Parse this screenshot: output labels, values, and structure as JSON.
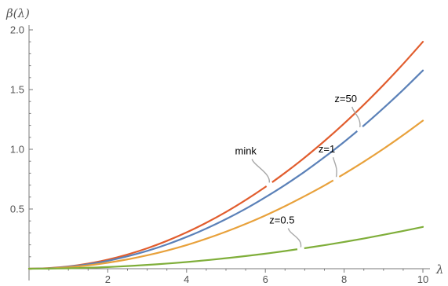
{
  "chart_data": {
    "type": "line",
    "xlabel": "λ",
    "ylabel": "β(λ)",
    "xlim": [
      0,
      10
    ],
    "ylim": [
      -0.1,
      2.0
    ],
    "xticks": [
      2,
      4,
      6,
      8,
      10
    ],
    "yticks": [
      0.5,
      1.0,
      1.5,
      2.0
    ],
    "ytick_labels": [
      "0.5",
      "1.0",
      "1.5",
      "2.0"
    ],
    "grid": false,
    "x": [
      0,
      0.5,
      1,
      1.5,
      2,
      2.5,
      3,
      3.5,
      4,
      4.5,
      5,
      5.5,
      6,
      6.5,
      7,
      7.5,
      8,
      8.5,
      9,
      9.5,
      10
    ],
    "series": [
      {
        "name": "mink",
        "color": "#e15d2e",
        "values": [
          0,
          0.005,
          0.019,
          0.043,
          0.076,
          0.119,
          0.171,
          0.233,
          0.304,
          0.385,
          0.475,
          0.575,
          0.684,
          0.803,
          0.931,
          1.069,
          1.216,
          1.373,
          1.539,
          1.715,
          1.9
        ]
      },
      {
        "name": "z=50",
        "color": "#5b81b8",
        "values": [
          0,
          0.004,
          0.017,
          0.037,
          0.066,
          0.104,
          0.149,
          0.203,
          0.266,
          0.336,
          0.415,
          0.502,
          0.598,
          0.701,
          0.813,
          0.934,
          1.062,
          1.199,
          1.345,
          1.498,
          1.66
        ]
      },
      {
        "name": "z=1",
        "color": "#e8a13b",
        "values": [
          0,
          0.003,
          0.012,
          0.028,
          0.05,
          0.078,
          0.112,
          0.152,
          0.198,
          0.251,
          0.31,
          0.375,
          0.446,
          0.524,
          0.608,
          0.697,
          0.794,
          0.896,
          1.004,
          1.119,
          1.24
        ]
      },
      {
        "name": "z=0.5",
        "color": "#7fae3a",
        "values": [
          0,
          0.001,
          0.0035,
          0.008,
          0.014,
          0.022,
          0.032,
          0.043,
          0.056,
          0.071,
          0.088,
          0.106,
          0.126,
          0.148,
          0.172,
          0.197,
          0.224,
          0.253,
          0.284,
          0.316,
          0.35
        ]
      }
    ],
    "annotations": [
      {
        "text": "mink",
        "series": "mink",
        "x": 6.1
      },
      {
        "text": "z=50",
        "series": "z=50",
        "x": 8.4
      },
      {
        "text": "z=1",
        "series": "z=1",
        "x": 7.8
      },
      {
        "text": "z=0.5",
        "series": "z=0.5",
        "x": 6.9
      }
    ]
  }
}
